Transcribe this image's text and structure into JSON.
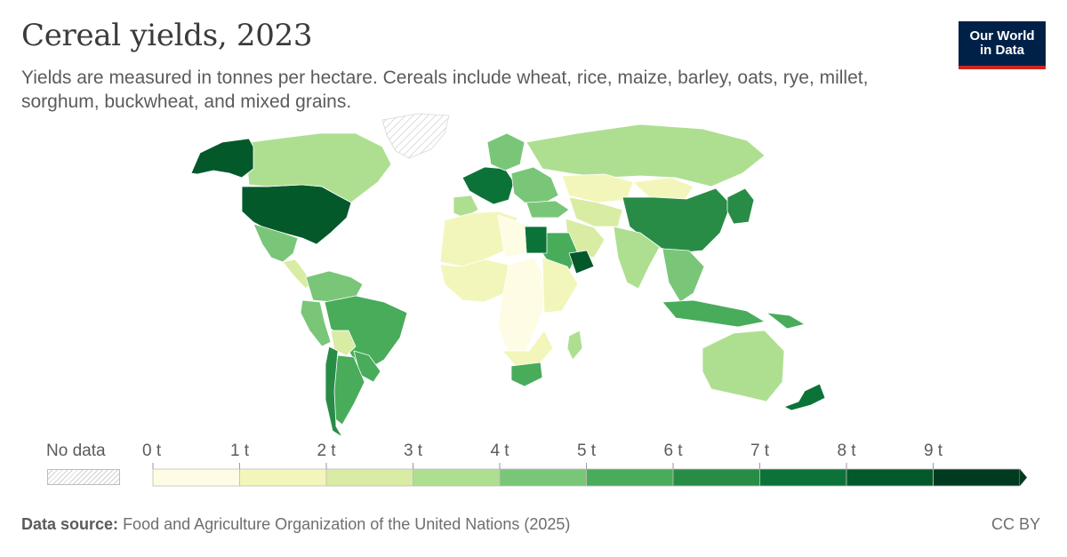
{
  "header": {
    "title": "Cereal yields, 2023",
    "subtitle": "Yields are measured in tonnes per hectare. Cereals include wheat, rice, maize, barley, oats, rye, millet, sorghum, buckwheat, and mixed grains."
  },
  "logo": {
    "text": "Our World in Data",
    "background": "#002147",
    "accent": "#ce261e"
  },
  "legend": {
    "no_data_label": "No data",
    "ticks": [
      "0 t",
      "1 t",
      "2 t",
      "3 t",
      "4 t",
      "5 t",
      "6 t",
      "7 t",
      "8 t",
      "9 t"
    ],
    "colors": [
      "#fefce4",
      "#f3f6ba",
      "#d9eca3",
      "#aedf91",
      "#79c679",
      "#48ac5b",
      "#288c47",
      "#0c7338",
      "#04592b",
      "#003b1f"
    ],
    "arrow_color": "#003b1f"
  },
  "footer": {
    "source_label": "Data source:",
    "source_text": "Food and Agriculture Organization of the United Nations (2025)",
    "license": "CC BY"
  },
  "chart_data": {
    "type": "choropleth",
    "unit": "t",
    "bins": [
      0,
      1,
      2,
      3,
      4,
      5,
      6,
      7,
      8,
      9
    ],
    "regions": [
      {
        "name": "United States",
        "bin": 8
      },
      {
        "name": "Canada",
        "bin": 3
      },
      {
        "name": "Alaska",
        "bin": 8
      },
      {
        "name": "Greenland",
        "bin": null
      },
      {
        "name": "Mexico",
        "bin": 4
      },
      {
        "name": "Central America",
        "bin": 2
      },
      {
        "name": "Colombia and Venezuela",
        "bin": 4
      },
      {
        "name": "Brazil",
        "bin": 5
      },
      {
        "name": "Peru",
        "bin": 4
      },
      {
        "name": "Bolivia",
        "bin": 2
      },
      {
        "name": "Paraguay and Uruguay",
        "bin": 5
      },
      {
        "name": "Argentina",
        "bin": 5
      },
      {
        "name": "Chile",
        "bin": 6
      },
      {
        "name": "Western Europe",
        "bin": 7
      },
      {
        "name": "Iberia",
        "bin": 3
      },
      {
        "name": "Scandinavia",
        "bin": 4
      },
      {
        "name": "Eastern Europe",
        "bin": 4
      },
      {
        "name": "Russia",
        "bin": 3
      },
      {
        "name": "Kazakhstan",
        "bin": 1
      },
      {
        "name": "Mongolia",
        "bin": 1
      },
      {
        "name": "China",
        "bin": 6
      },
      {
        "name": "Japan and Korea",
        "bin": 6
      },
      {
        "name": "Turkey",
        "bin": 4
      },
      {
        "name": "Iran",
        "bin": 2
      },
      {
        "name": "Central Asia",
        "bin": 2
      },
      {
        "name": "India",
        "bin": 3
      },
      {
        "name": "Southeast Asia",
        "bin": 4
      },
      {
        "name": "Indonesia",
        "bin": 5
      },
      {
        "name": "Saudi Arabia",
        "bin": 5
      },
      {
        "name": "Oman",
        "bin": 8
      },
      {
        "name": "Egypt",
        "bin": 7
      },
      {
        "name": "North Africa",
        "bin": 1
      },
      {
        "name": "Libya",
        "bin": 0
      },
      {
        "name": "West Africa",
        "bin": 1
      },
      {
        "name": "Central Africa",
        "bin": 0
      },
      {
        "name": "East Africa",
        "bin": 1
      },
      {
        "name": "Southern Africa",
        "bin": 1
      },
      {
        "name": "South Africa",
        "bin": 5
      },
      {
        "name": "Madagascar",
        "bin": 3
      },
      {
        "name": "Australia",
        "bin": 3
      },
      {
        "name": "New Zealand",
        "bin": 7
      },
      {
        "name": "Papua New Guinea",
        "bin": 5
      }
    ]
  }
}
